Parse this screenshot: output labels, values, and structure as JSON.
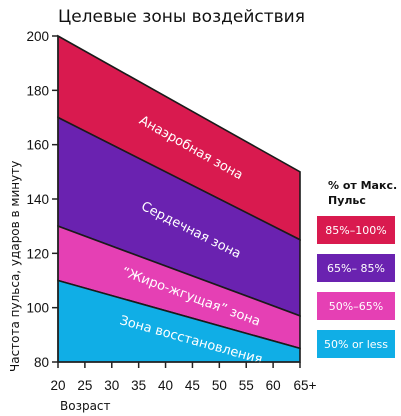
{
  "chart_data": {
    "type": "area",
    "title": "Целевые зоны воздействия",
    "xlabel": "Возраст",
    "ylabel": "Частота пульса, ударов в минуту",
    "x_ticks": [
      "20",
      "25",
      "30",
      "35",
      "40",
      "45",
      "50",
      "55",
      "60",
      "65+"
    ],
    "y_ticks": [
      "80",
      "100",
      "120",
      "140",
      "160",
      "180",
      "200"
    ],
    "xlim": [
      20,
      65
    ],
    "ylim": [
      80,
      200
    ],
    "grid": false,
    "legend_position": "right",
    "legend_title": "% от Макс. Пульс",
    "zones": [
      {
        "name": "Анаэробная зона",
        "legend": "85%–100%",
        "color": "#d91a4f",
        "lower": [
          170,
          125
        ],
        "upper": [
          200,
          150
        ]
      },
      {
        "name": "Сердечная зона",
        "legend": "65%– 85%",
        "color": "#6a22b0",
        "lower": [
          130,
          97
        ],
        "upper": [
          170,
          125
        ]
      },
      {
        "name": "“Жиро-жгущая” зона",
        "legend": "50%–65%",
        "color": "#e540b4",
        "lower": [
          110,
          85
        ],
        "upper": [
          130,
          97
        ]
      },
      {
        "name": "Зона восстановления",
        "legend": "50% or less",
        "color": "#10aee6",
        "lower": [
          80,
          80
        ],
        "upper": [
          110,
          85
        ]
      }
    ]
  }
}
